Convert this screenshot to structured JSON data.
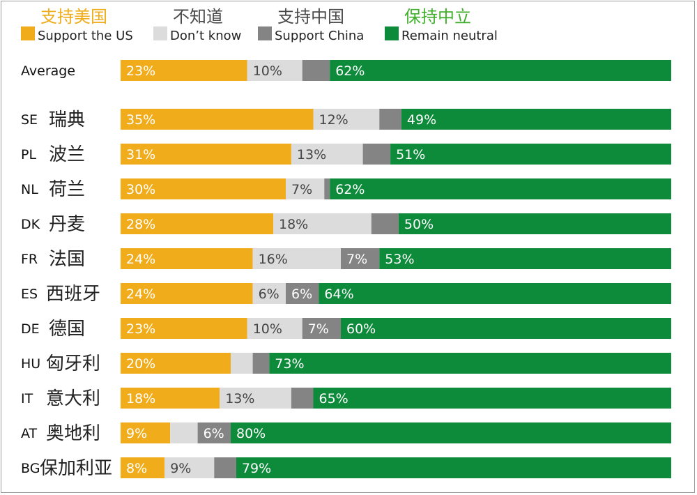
{
  "chart_data": {
    "type": "bar",
    "stacked": "horizontal-100",
    "legend": [
      {
        "key": "us",
        "cn_label": "支持美国",
        "en_label": "Support the US",
        "color": "#f0ac1a",
        "cn_color": "#f0ac1a"
      },
      {
        "key": "dk",
        "cn_label": "不知道",
        "en_label": "Don’t know",
        "color": "#dcdcdc",
        "cn_color": "#4a4a4a"
      },
      {
        "key": "china",
        "cn_label": "支持中国",
        "en_label": "Support China",
        "color": "#848484",
        "cn_color": "#4a4a4a"
      },
      {
        "key": "neutral",
        "cn_label": "保持中立",
        "en_label": "Remain neutral",
        "color": "#0d8a3a",
        "cn_color": "#3fae2a"
      }
    ],
    "rows": [
      {
        "code": "Average",
        "name": "",
        "values": {
          "us": 23,
          "dk": 10,
          "china": 5,
          "neutral": 62
        },
        "labels": {
          "us": "23%",
          "dk": "10%",
          "china": "",
          "neutral": "62%"
        }
      },
      {
        "code": "SE",
        "name": "瑞典",
        "values": {
          "us": 35,
          "dk": 12,
          "china": 4,
          "neutral": 49
        },
        "labels": {
          "us": "35%",
          "dk": "12%",
          "china": "",
          "neutral": "49%"
        }
      },
      {
        "code": "PL",
        "name": "波兰",
        "values": {
          "us": 31,
          "dk": 13,
          "china": 5,
          "neutral": 51
        },
        "labels": {
          "us": "31%",
          "dk": "13%",
          "china": "",
          "neutral": "51%"
        }
      },
      {
        "code": "NL",
        "name": "荷兰",
        "values": {
          "us": 30,
          "dk": 7,
          "china": 1,
          "neutral": 62
        },
        "labels": {
          "us": "30%",
          "dk": "7%",
          "china": "",
          "neutral": "62%"
        }
      },
      {
        "code": "DK",
        "name": "丹麦",
        "values": {
          "us": 28,
          "dk": 18,
          "china": 5,
          "neutral": 50
        },
        "labels": {
          "us": "28%",
          "dk": "18%",
          "china": "",
          "neutral": "50%"
        }
      },
      {
        "code": "FR",
        "name": "法国",
        "values": {
          "us": 24,
          "dk": 16,
          "china": 7,
          "neutral": 53
        },
        "labels": {
          "us": "24%",
          "dk": "16%",
          "china": "7%",
          "neutral": "53%"
        }
      },
      {
        "code": "ES",
        "name": "西班牙",
        "values": {
          "us": 24,
          "dk": 6,
          "china": 6,
          "neutral": 64
        },
        "labels": {
          "us": "24%",
          "dk": "6%",
          "china": "6%",
          "neutral": "64%"
        }
      },
      {
        "code": "DE",
        "name": "德国",
        "values": {
          "us": 23,
          "dk": 10,
          "china": 7,
          "neutral": 60
        },
        "labels": {
          "us": "23%",
          "dk": "10%",
          "china": "7%",
          "neutral": "60%"
        }
      },
      {
        "code": "HU",
        "name": "匈牙利",
        "values": {
          "us": 20,
          "dk": 4,
          "china": 3,
          "neutral": 73
        },
        "labels": {
          "us": "20%",
          "dk": "",
          "china": "",
          "neutral": "73%"
        }
      },
      {
        "code": "IT",
        "name": "意大利",
        "values": {
          "us": 18,
          "dk": 13,
          "china": 4,
          "neutral": 65
        },
        "labels": {
          "us": "18%",
          "dk": "13%",
          "china": "",
          "neutral": "65%"
        }
      },
      {
        "code": "AT",
        "name": "奥地利",
        "values": {
          "us": 9,
          "dk": 5,
          "china": 6,
          "neutral": 80
        },
        "labels": {
          "us": "9%",
          "dk": "",
          "china": "6%",
          "neutral": "80%"
        }
      },
      {
        "code": "BG",
        "name": "保加利亚",
        "values": {
          "us": 8,
          "dk": 9,
          "china": 4,
          "neutral": 79
        },
        "labels": {
          "us": "8%",
          "dk": "9%",
          "china": "",
          "neutral": "79%"
        }
      }
    ],
    "xlim": [
      0,
      100
    ],
    "grid": false,
    "legend_position": "top"
  }
}
